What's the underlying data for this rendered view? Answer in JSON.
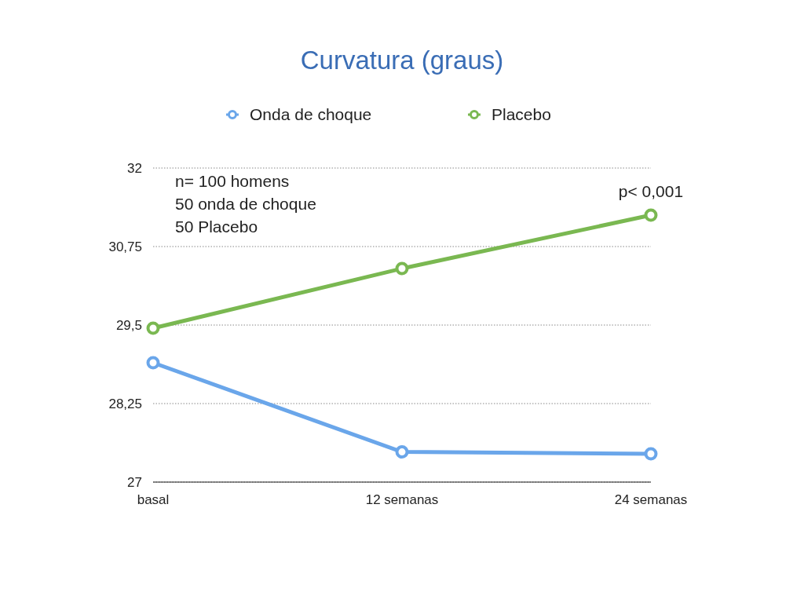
{
  "chart_data": {
    "type": "line",
    "title": "Curvatura (graus)",
    "categories": [
      "basal",
      "12 semanas",
      "24 semanas"
    ],
    "series": [
      {
        "name": "Onda de choque",
        "color": "#6aa6ea",
        "values": [
          28.9,
          27.48,
          27.45
        ]
      },
      {
        "name": "Placebo",
        "color": "#7ab851",
        "values": [
          29.45,
          30.4,
          31.25
        ]
      }
    ],
    "ylim": [
      27,
      32
    ],
    "yticks": [
      27,
      {
        "value": 28.25,
        "label": "28,25"
      },
      {
        "value": 29.5,
        "label": "29,5"
      },
      {
        "value": 30.75,
        "label": "30,75"
      },
      32
    ],
    "grid": "y",
    "legend": "top",
    "marker": "circle",
    "line_style": "solid",
    "annotations": [
      "n= 100 homens",
      "50 onda de choque",
      "50 Placebo",
      {
        "text": "p< 0,001",
        "x": "24 semanas",
        "y": 31.25
      }
    ]
  }
}
